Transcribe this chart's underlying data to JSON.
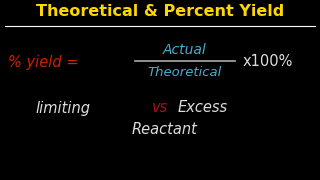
{
  "background_color": "#000000",
  "title_text": "Theoretical & Percent Yield",
  "title_color": "#FFD700",
  "title_fontsize": 11.5,
  "divider_color": "#FFFFFF",
  "percent_yield_text": "% yield =",
  "percent_yield_color": "#CC2200",
  "actual_text": "Actual",
  "actual_color": "#4AACCC",
  "theoretical_text": "Theoretical",
  "theoretical_color": "#4AACCC",
  "fraction_line_color": "#AAAAAA",
  "x100_text": "x100%",
  "x100_color": "#DDDDDD",
  "limiting_text": "limiting",
  "limiting_color": "#DDDDDD",
  "vs_text": "vs",
  "vs_color": "#AA1111",
  "excess_text": "Excess",
  "excess_color": "#DDDDDD",
  "reactant_text": "Reactant",
  "reactant_color": "#DDDDDD"
}
